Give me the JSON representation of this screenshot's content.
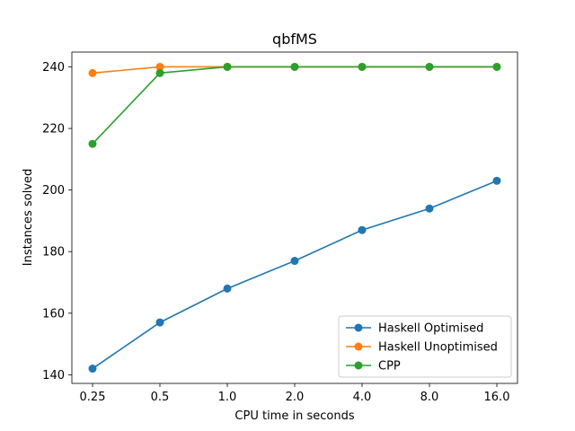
{
  "chart_data": {
    "type": "line",
    "title": "qbfMS",
    "xlabel": "CPU time in seconds",
    "ylabel": "Instances solved",
    "categories": [
      "0.25",
      "0.5",
      "1.0",
      "2.0",
      "4.0",
      "8.0",
      "16.0"
    ],
    "yticks": [
      "140",
      "160",
      "180",
      "200",
      "220",
      "240"
    ],
    "ylim": [
      137.2,
      244.8
    ],
    "grid": false,
    "legend_position": "lower-right",
    "series": [
      {
        "name": "Haskell Optimised",
        "color": "#1f77b4",
        "values": [
          142,
          157,
          168,
          177,
          187,
          194,
          203
        ]
      },
      {
        "name": "Haskell Unoptimised",
        "color": "#ff7f0e",
        "values": [
          238,
          240,
          240,
          240,
          240,
          240,
          240
        ]
      },
      {
        "name": "CPP",
        "color": "#2ca02c",
        "values": [
          215,
          238,
          240,
          240,
          240,
          240,
          240
        ]
      }
    ]
  }
}
